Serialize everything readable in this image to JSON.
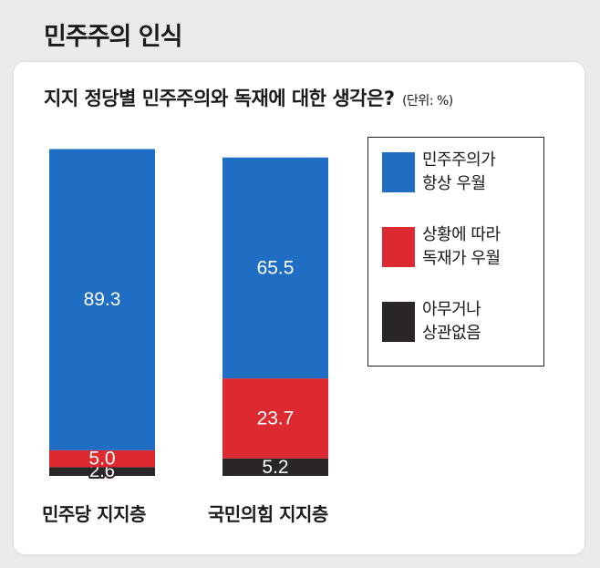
{
  "page": {
    "title": "민주주의 인식"
  },
  "chart_data": {
    "type": "bar",
    "stacked": true,
    "title": "지지 정당별 민주주의와 독재에 대한 생각은?",
    "unit": "(단위: %)",
    "categories": [
      "민주당 지지층",
      "국민의힘 지지층"
    ],
    "series": [
      {
        "name": "민주주의가 항상 우월",
        "color": "#1f6ec4",
        "values": [
          89.3,
          65.5
        ]
      },
      {
        "name": "상황에 따라 독재가 우월",
        "color": "#dc2a30",
        "values": [
          5.0,
          23.7
        ]
      },
      {
        "name": "아무거나 상관없음",
        "color": "#2a2526",
        "values": [
          2.6,
          5.2
        ]
      }
    ],
    "value_labels": [
      [
        "89.3",
        "65.5"
      ],
      [
        "5.0",
        "23.7"
      ],
      [
        "2.6",
        "5.2"
      ]
    ],
    "legend": {
      "placement": "right",
      "lines": [
        [
          "민주주의가",
          "항상 우월"
        ],
        [
          "상황에 따라",
          "독재가 우월"
        ],
        [
          "아무거나",
          "상관없음"
        ]
      ]
    },
    "ylim": [
      0,
      100
    ],
    "grid": false
  }
}
